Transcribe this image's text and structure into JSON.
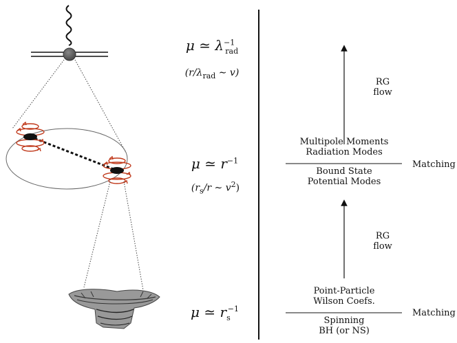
{
  "scales": {
    "radiation": {
      "main_mu": "μ ≃ λ",
      "main_sup": "−1",
      "main_sub": "rad",
      "cond": "(r/λ",
      "cond_sub": "rad",
      "cond_tail": " ∼ v)"
    },
    "orbital": {
      "main": "μ ≃ r",
      "main_sup": "−1",
      "cond": "(r",
      "cond_sub": "s",
      "cond_mid": "/r ∼ v",
      "cond_sup": "2",
      "cond_tail": ")"
    },
    "compact": {
      "main": "μ ≃ r",
      "main_sub": "s",
      "main_sup": "−1"
    }
  },
  "right_column": {
    "rg_upper": [
      "RG",
      "flow"
    ],
    "rg_lower": [
      "RG",
      "flow"
    ],
    "orbital_above": [
      "Multipole Moments",
      "Radiation Modes"
    ],
    "orbital_below": [
      "Bound State",
      "Potential Modes"
    ],
    "compact_above": [
      "Point-Particle",
      "Wilson Coefs."
    ],
    "compact_below": [
      "Spinning",
      "BH (or NS)"
    ],
    "matching_upper": "Matching",
    "matching_lower": "Matching"
  },
  "colors": {
    "spin_arrows": "#c0391b",
    "line": "#222222",
    "detector": "#555555"
  },
  "icons": [
    "graviton-wavy-line-icon",
    "detector-node-icon",
    "binary-orbit-icon",
    "black-hole-icon",
    "spin-swirl-icon"
  ]
}
